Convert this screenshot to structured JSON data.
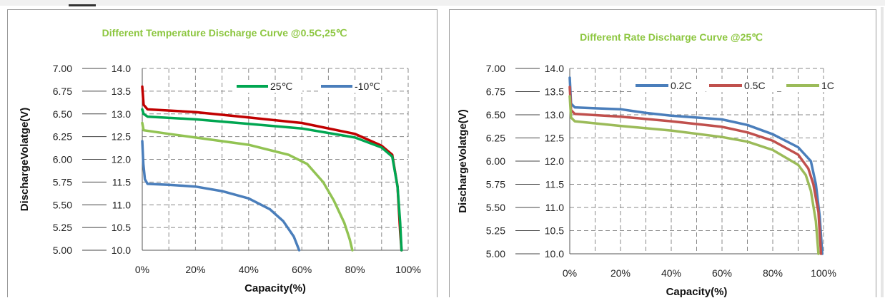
{
  "chart_data": [
    {
      "type": "line",
      "title": "Different Temperature Discharge Curve @0.5C,25℃",
      "title_color": "#8cc63f",
      "xlabel": "Capacity(%)",
      "ylabel": "DischargeVolatge(V)",
      "xlim": [
        0,
        100
      ],
      "ylim": [
        5.0,
        7.0
      ],
      "ylim_secondary": [
        10.0,
        14.0
      ],
      "x_ticks": [
        "0%",
        "20%",
        "40%",
        "60%",
        "80%",
        "100%"
      ],
      "y_ticks": [
        "5.00",
        "5.25",
        "5.50",
        "5.75",
        "6.00",
        "6.25",
        "6.50",
        "6.75",
        "7.00"
      ],
      "y_ticks_secondary": [
        "10.0",
        "10.5",
        "11.0",
        "11.5",
        "12.0",
        "12.5",
        "13.0",
        "13.5",
        "14.0"
      ],
      "grid": true,
      "legend_position": "top-right",
      "legend": [
        {
          "label": "25℃",
          "color": "#00a651"
        },
        {
          "label": "-10℃",
          "color": "#4a7ebb"
        }
      ],
      "series": [
        {
          "color": "#c00000",
          "points": [
            [
              0,
              6.8
            ],
            [
              0.5,
              6.6
            ],
            [
              2,
              6.55
            ],
            [
              20,
              6.52
            ],
            [
              40,
              6.46
            ],
            [
              60,
              6.4
            ],
            [
              80,
              6.28
            ],
            [
              90,
              6.15
            ],
            [
              94,
              6.05
            ],
            [
              96,
              5.7
            ],
            [
              97,
              5.2
            ],
            [
              97.5,
              5.0
            ]
          ]
        },
        {
          "name": "25℃",
          "color": "#00a651",
          "points": [
            [
              0,
              6.55
            ],
            [
              0.5,
              6.5
            ],
            [
              2,
              6.47
            ],
            [
              20,
              6.44
            ],
            [
              40,
              6.39
            ],
            [
              60,
              6.34
            ],
            [
              80,
              6.24
            ],
            [
              90,
              6.13
            ],
            [
              94,
              6.03
            ],
            [
              96,
              5.7
            ],
            [
              97,
              5.3
            ],
            [
              97.5,
              5.0
            ]
          ]
        },
        {
          "color": "#92c353",
          "points": [
            [
              0,
              6.4
            ],
            [
              0.5,
              6.32
            ],
            [
              10,
              6.28
            ],
            [
              20,
              6.24
            ],
            [
              40,
              6.16
            ],
            [
              55,
              6.05
            ],
            [
              62,
              5.95
            ],
            [
              68,
              5.75
            ],
            [
              72,
              5.55
            ],
            [
              76,
              5.3
            ],
            [
              78,
              5.12
            ],
            [
              79,
              5.0
            ]
          ]
        },
        {
          "name": "-10℃",
          "color": "#4a7ebb",
          "points": [
            [
              0,
              6.2
            ],
            [
              0.4,
              5.95
            ],
            [
              1,
              5.78
            ],
            [
              2,
              5.73
            ],
            [
              10,
              5.72
            ],
            [
              20,
              5.7
            ],
            [
              30,
              5.65
            ],
            [
              40,
              5.57
            ],
            [
              48,
              5.45
            ],
            [
              53,
              5.32
            ],
            [
              57,
              5.15
            ],
            [
              59,
              5.0
            ]
          ]
        }
      ]
    },
    {
      "type": "line",
      "title": "Different Rate Discharge Curve @25℃",
      "title_color": "#8cc63f",
      "xlabel": "Capacity(%)",
      "ylabel": "DischargeVolatge(V)",
      "xlim": [
        0,
        100
      ],
      "ylim": [
        5.0,
        7.0
      ],
      "ylim_secondary": [
        10.0,
        14.0
      ],
      "x_ticks": [
        "0%",
        "20%",
        "40%",
        "60%",
        "80%",
        "100%"
      ],
      "y_ticks": [
        "5.00",
        "5.25",
        "5.50",
        "5.75",
        "6.00",
        "6.25",
        "6.50",
        "6.75",
        "7.00"
      ],
      "y_ticks_secondary": [
        "10.0",
        "10.5",
        "11.0",
        "11.5",
        "12.0",
        "12.5",
        "13.0",
        "13.5",
        "14.0"
      ],
      "grid": true,
      "legend_position": "top-right",
      "legend": [
        {
          "label": "0.2C",
          "color": "#4a7ebb"
        },
        {
          "label": "0.5C",
          "color": "#c0504d"
        },
        {
          "label": "1C",
          "color": "#9bbb59"
        }
      ],
      "series": [
        {
          "name": "0.2C",
          "color": "#4a7ebb",
          "points": [
            [
              0,
              6.9
            ],
            [
              0.5,
              6.62
            ],
            [
              2,
              6.58
            ],
            [
              10,
              6.57
            ],
            [
              20,
              6.56
            ],
            [
              30,
              6.52
            ],
            [
              40,
              6.49
            ],
            [
              50,
              6.47
            ],
            [
              60,
              6.45
            ],
            [
              70,
              6.39
            ],
            [
              80,
              6.29
            ],
            [
              90,
              6.15
            ],
            [
              95,
              6.0
            ],
            [
              97,
              5.75
            ],
            [
              98.5,
              5.4
            ],
            [
              99.5,
              5.0
            ]
          ]
        },
        {
          "name": "0.5C",
          "color": "#c0504d",
          "points": [
            [
              0,
              6.8
            ],
            [
              0.5,
              6.55
            ],
            [
              2,
              6.51
            ],
            [
              20,
              6.48
            ],
            [
              40,
              6.43
            ],
            [
              60,
              6.37
            ],
            [
              70,
              6.31
            ],
            [
              80,
              6.22
            ],
            [
              90,
              6.07
            ],
            [
              94,
              5.92
            ],
            [
              96,
              5.75
            ],
            [
              98,
              5.45
            ],
            [
              99,
              5.0
            ]
          ]
        },
        {
          "name": "1C",
          "color": "#9bbb59",
          "points": [
            [
              0,
              6.7
            ],
            [
              0.5,
              6.47
            ],
            [
              2,
              6.43
            ],
            [
              20,
              6.38
            ],
            [
              40,
              6.33
            ],
            [
              60,
              6.26
            ],
            [
              70,
              6.21
            ],
            [
              80,
              6.12
            ],
            [
              90,
              5.96
            ],
            [
              93,
              5.85
            ],
            [
              95,
              5.68
            ],
            [
              97,
              5.35
            ],
            [
              98,
              5.0
            ]
          ]
        }
      ]
    }
  ]
}
